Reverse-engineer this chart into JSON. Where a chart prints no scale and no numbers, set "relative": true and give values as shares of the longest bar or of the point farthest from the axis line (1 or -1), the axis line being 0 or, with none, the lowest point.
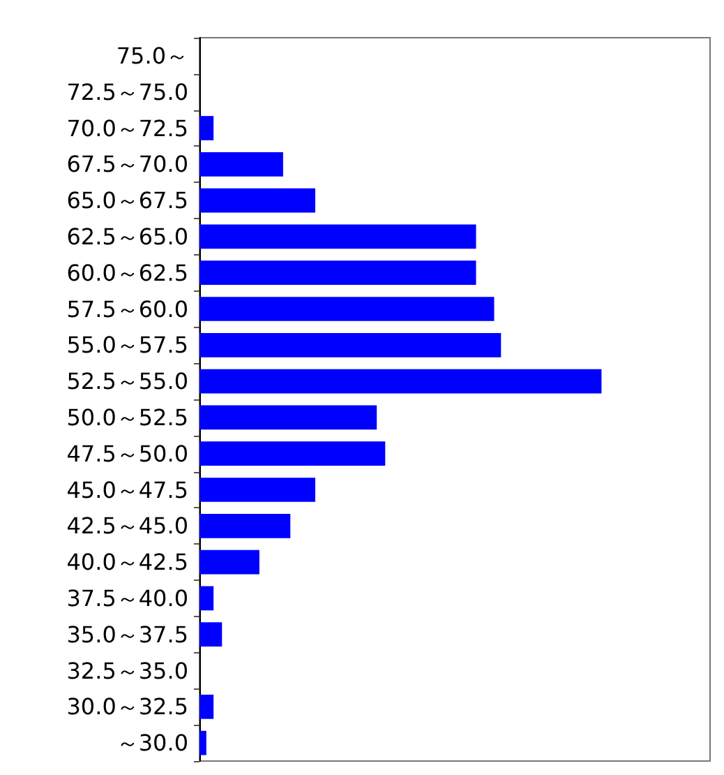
{
  "chart_data": {
    "type": "bar",
    "orientation": "horizontal",
    "relative": true,
    "categories": [
      "75.0～",
      "72.5～75.0",
      "70.0～72.5",
      "67.5～70.0",
      "65.0～67.5",
      "62.5～65.0",
      "60.0～62.5",
      "57.5～60.0",
      "55.0～57.5",
      "52.5～55.0",
      "50.0～52.5",
      "47.5～50.0",
      "45.0～47.5",
      "42.5～45.0",
      "40.0～42.5",
      "37.5～40.0",
      "35.0～37.5",
      "32.5～35.0",
      "30.0～32.5",
      "～30.0"
    ],
    "values": [
      0,
      0,
      0.035,
      0.208,
      0.288,
      0.688,
      0.688,
      0.733,
      0.75,
      1,
      0.441,
      0.462,
      0.288,
      0.226,
      0.149,
      0.035,
      0.056,
      0,
      0.035,
      0.017
    ],
    "color": "#0000ff"
  }
}
